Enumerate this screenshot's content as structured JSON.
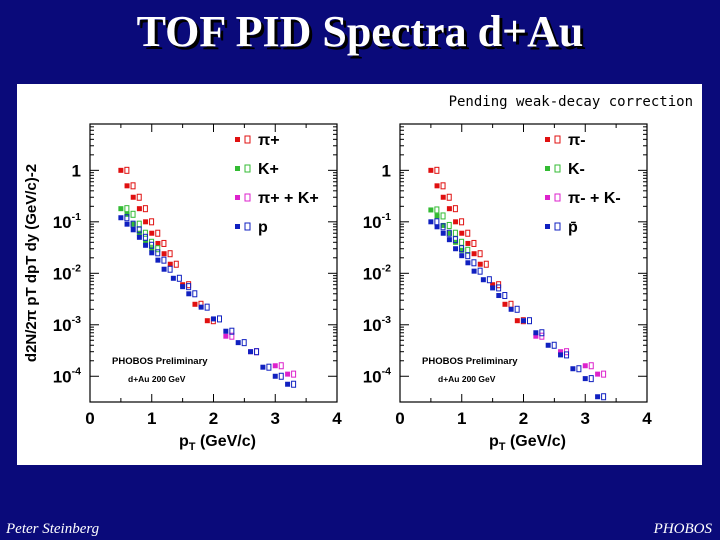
{
  "slide": {
    "title": "TOF PID Spectra d+Au",
    "footer_left": "Peter Steinberg",
    "footer_right": "PHOBOS",
    "background_color": "#0a0a7a"
  },
  "figure": {
    "note": "Pending weak-decay correction"
  },
  "chart_data": [
    {
      "type": "scatter",
      "panel": "left",
      "xlabel": "pT (GeV/c)",
      "ylabel": "d2N/2π pT dpT dy (GeV/c)-2",
      "xlim": [
        0,
        4
      ],
      "ylim_log10": [
        -4.5,
        0.9
      ],
      "x_ticks": [
        "0",
        "1",
        "2",
        "3",
        "4"
      ],
      "y_ticks": [
        {
          "base": "1",
          "exp": ""
        },
        {
          "base": "10",
          "exp": "-1"
        },
        {
          "base": "10",
          "exp": "-2"
        },
        {
          "base": "10",
          "exp": "-3"
        },
        {
          "base": "10",
          "exp": "-4"
        }
      ],
      "annotation": "PHOBOS Preliminary",
      "annotation_sub": "d+Au 200 GeV",
      "legend_position": "top-right",
      "series": [
        {
          "name": "π+",
          "color": "#e01010",
          "marker": "square",
          "x": [
            0.5,
            0.6,
            0.7,
            0.8,
            0.9,
            1.0,
            1.1,
            1.2,
            1.3,
            1.5,
            1.7,
            1.9
          ],
          "y": [
            1.0,
            0.5,
            0.3,
            0.18,
            0.1,
            0.06,
            0.038,
            0.024,
            0.015,
            0.006,
            0.0025,
            0.0012
          ]
        },
        {
          "name": "K+",
          "color": "#33bb33",
          "marker": "square",
          "x": [
            0.5,
            0.6,
            0.7,
            0.8,
            0.9,
            1.0
          ],
          "y": [
            0.18,
            0.14,
            0.09,
            0.06,
            0.04,
            0.03
          ]
        },
        {
          "name": "π+ + K+",
          "color": "#dd22cc",
          "marker": "square",
          "x": [
            2.2,
            2.6,
            3.0,
            3.2
          ],
          "y": [
            0.0006,
            0.0003,
            0.00016,
            0.00011
          ]
        },
        {
          "name": "p",
          "color": "#1020c0",
          "marker": "square",
          "x": [
            0.5,
            0.6,
            0.7,
            0.8,
            0.9,
            1.0,
            1.1,
            1.2,
            1.35,
            1.5,
            1.6,
            1.8,
            2.0,
            2.2,
            2.4,
            2.6,
            2.8,
            3.0,
            3.2
          ],
          "y": [
            0.12,
            0.09,
            0.07,
            0.05,
            0.035,
            0.025,
            0.018,
            0.012,
            0.008,
            0.0055,
            0.004,
            0.0022,
            0.0013,
            0.00075,
            0.00045,
            0.0003,
            0.00015,
            0.0001,
            7e-05
          ]
        }
      ]
    },
    {
      "type": "scatter",
      "panel": "right",
      "xlabel": "pT (GeV/c)",
      "ylabel": "",
      "xlim": [
        0,
        4
      ],
      "ylim_log10": [
        -4.5,
        0.9
      ],
      "x_ticks": [
        "0",
        "1",
        "2",
        "3",
        "4"
      ],
      "y_ticks": [
        {
          "base": "1",
          "exp": ""
        },
        {
          "base": "10",
          "exp": "-1"
        },
        {
          "base": "10",
          "exp": "-2"
        },
        {
          "base": "10",
          "exp": "-3"
        },
        {
          "base": "10",
          "exp": "-4"
        }
      ],
      "annotation": "PHOBOS Preliminary",
      "annotation_sub": "d+Au 200 GeV",
      "legend_position": "top-right",
      "series": [
        {
          "name": "π-",
          "color": "#e01010",
          "marker": "square",
          "x": [
            0.5,
            0.6,
            0.7,
            0.8,
            0.9,
            1.0,
            1.1,
            1.2,
            1.3,
            1.5,
            1.7,
            1.9
          ],
          "y": [
            1.0,
            0.5,
            0.3,
            0.18,
            0.1,
            0.06,
            0.038,
            0.024,
            0.015,
            0.006,
            0.0025,
            0.0012
          ]
        },
        {
          "name": "K-",
          "color": "#33bb33",
          "marker": "square",
          "x": [
            0.5,
            0.6,
            0.7,
            0.8,
            0.9,
            1.0
          ],
          "y": [
            0.17,
            0.13,
            0.085,
            0.06,
            0.04,
            0.028
          ]
        },
        {
          "name": "π- + K-",
          "color": "#dd22cc",
          "marker": "square",
          "x": [
            2.2,
            2.6,
            3.0,
            3.2
          ],
          "y": [
            0.0006,
            0.0003,
            0.00016,
            0.00011
          ]
        },
        {
          "name": "p̄",
          "color": "#1020c0",
          "marker": "square",
          "x": [
            0.5,
            0.6,
            0.7,
            0.8,
            0.9,
            1.0,
            1.1,
            1.2,
            1.35,
            1.5,
            1.6,
            1.8,
            2.0,
            2.2,
            2.4,
            2.6,
            2.8,
            3.0,
            3.2
          ],
          "y": [
            0.1,
            0.08,
            0.06,
            0.045,
            0.03,
            0.022,
            0.016,
            0.011,
            0.0075,
            0.0052,
            0.0037,
            0.002,
            0.0012,
            0.0007,
            0.0004,
            0.00026,
            0.00014,
            9e-05,
            4e-05
          ]
        }
      ]
    }
  ]
}
